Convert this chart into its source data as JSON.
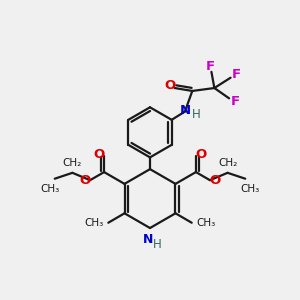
{
  "background_color": "#f0f0f0",
  "bond_color": "#1a1a1a",
  "oxygen_color": "#dd0000",
  "nitrogen_color": "#0000cc",
  "fluorine_color": "#cc00cc",
  "nh_color": "#336666",
  "figsize": [
    3.0,
    3.0
  ],
  "dpi": 100,
  "xlim": [
    0,
    10
  ],
  "ylim": [
    0,
    10
  ]
}
